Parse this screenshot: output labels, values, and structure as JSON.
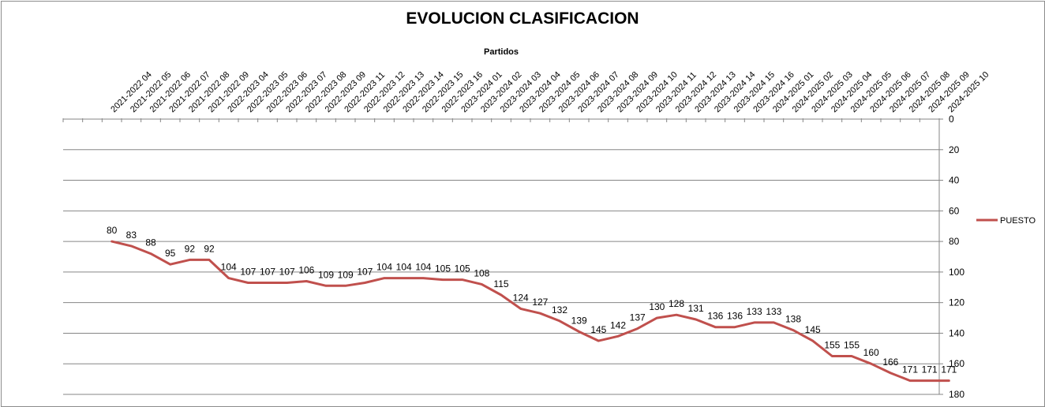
{
  "chart_data": {
    "type": "line",
    "title": "EVOLUCION CLASIFICACION",
    "xlabel": "Partidos",
    "ylabel": "",
    "ylim": [
      0,
      180
    ],
    "y_ticks": [
      0,
      20,
      40,
      60,
      80,
      100,
      120,
      140,
      160,
      180
    ],
    "y_axis_inverted": true,
    "y_axis_position": "right",
    "x_axis_position": "top",
    "grid": "horizontal",
    "legend_position": "right",
    "line_color": "#c0504d",
    "categories": [
      "2021-2022 04",
      "2021-2022 05",
      "2021-2022 06",
      "2021-2022 07",
      "2021-2022 08",
      "2021-2022 09",
      "2022-2023 04",
      "2022-2023 05",
      "2022-2023 06",
      "2022-2023 07",
      "2022-2023 08",
      "2022-2023 09",
      "2022-2023 11",
      "2022-2023 12",
      "2022-2023 13",
      "2022-2023 14",
      "2022-2023 15",
      "2022-2023 16",
      "2023-2024 01",
      "2023-2024 02",
      "2023-2024 03",
      "2023-2024 04",
      "2023-2024 05",
      "2023-2024 06",
      "2023-2024 07",
      "2023-2024 08",
      "2023-2024 09",
      "2023-2024 10",
      "2023-2024 11",
      "2023-2024 12",
      "2023-2024 13",
      "2023-2024 14",
      "2023-2024 15",
      "2023-2024 16",
      "2024-2025 01",
      "2024-2025 02",
      "2024-2025 03",
      "2024-2025 04",
      "2024-2025 05",
      "2024-2025 06",
      "2024-2025 07",
      "2024-2025 08",
      "2024-2025 09",
      "2024-2025 10"
    ],
    "series": [
      {
        "name": "PUESTO",
        "values": [
          80,
          83,
          88,
          95,
          92,
          92,
          104,
          107,
          107,
          107,
          106,
          109,
          109,
          107,
          104,
          104,
          104,
          105,
          105,
          108,
          115,
          124,
          127,
          132,
          139,
          145,
          142,
          137,
          130,
          128,
          131,
          136,
          136,
          133,
          133,
          138,
          145,
          155,
          155,
          160,
          166,
          171,
          171,
          171
        ]
      }
    ]
  }
}
